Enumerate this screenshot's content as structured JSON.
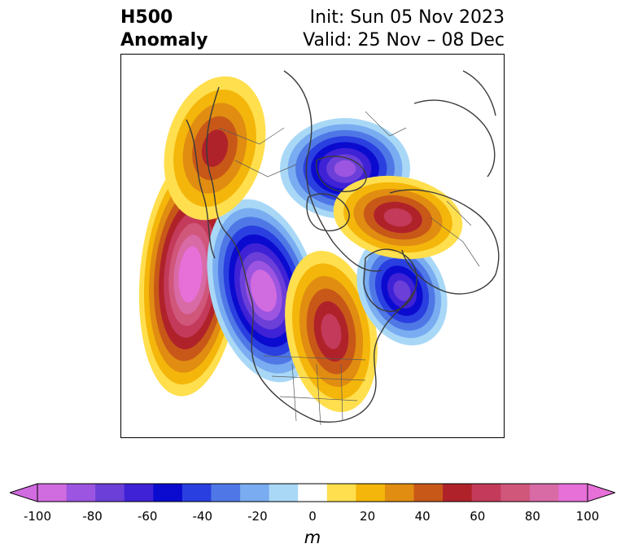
{
  "title": {
    "left_line1": "H500",
    "left_line2": "Anomaly",
    "right_line1": "Init: Sun 05 Nov 2023",
    "right_line2": "Valid: 25 Nov – 08 Dec"
  },
  "colorbar": {
    "unit": "m",
    "ticks": [
      "-100",
      "-80",
      "-60",
      "-40",
      "-20",
      "0",
      "20",
      "40",
      "60",
      "80",
      "100"
    ],
    "levels": [
      -100,
      -90,
      -80,
      -70,
      -60,
      -50,
      -40,
      -30,
      -20,
      -10,
      10,
      20,
      30,
      40,
      50,
      60,
      70,
      80,
      90,
      100
    ],
    "colors": [
      "#d16be0",
      "#9b55e0",
      "#6b3fd8",
      "#3f22d6",
      "#0b0bcf",
      "#2a3fe0",
      "#4f78e6",
      "#79acf0",
      "#a9d8f7",
      "#ffffff",
      "#ffdf4e",
      "#f4b60a",
      "#e08d12",
      "#c85818",
      "#b0222a",
      "#c33a5a",
      "#d0567a",
      "#d86aa6",
      "#e66fd8"
    ],
    "extend_low_color": "#d16be0",
    "extend_high_color": "#e66fd8"
  },
  "map": {
    "projection": "north-polar-stereographic",
    "region": "Northern Hemisphere (North Pacific / North America / North Atlantic)",
    "anomaly_centers": [
      {
        "name": "North Pacific ridge",
        "peak_m": 100,
        "sign": "positive"
      },
      {
        "name": "Western North America trough",
        "peak_m": -100,
        "sign": "negative"
      },
      {
        "name": "Eastern North America ridge",
        "peak_m": 60,
        "sign": "positive"
      },
      {
        "name": "North Atlantic trough",
        "peak_m": -70,
        "sign": "negative"
      },
      {
        "name": "Arctic / Siberia trough",
        "peak_m": -80,
        "sign": "negative"
      },
      {
        "name": "Europe ridge",
        "peak_m": 60,
        "sign": "positive"
      },
      {
        "name": "Northeast Asia ridge",
        "peak_m": 50,
        "sign": "positive"
      }
    ]
  }
}
